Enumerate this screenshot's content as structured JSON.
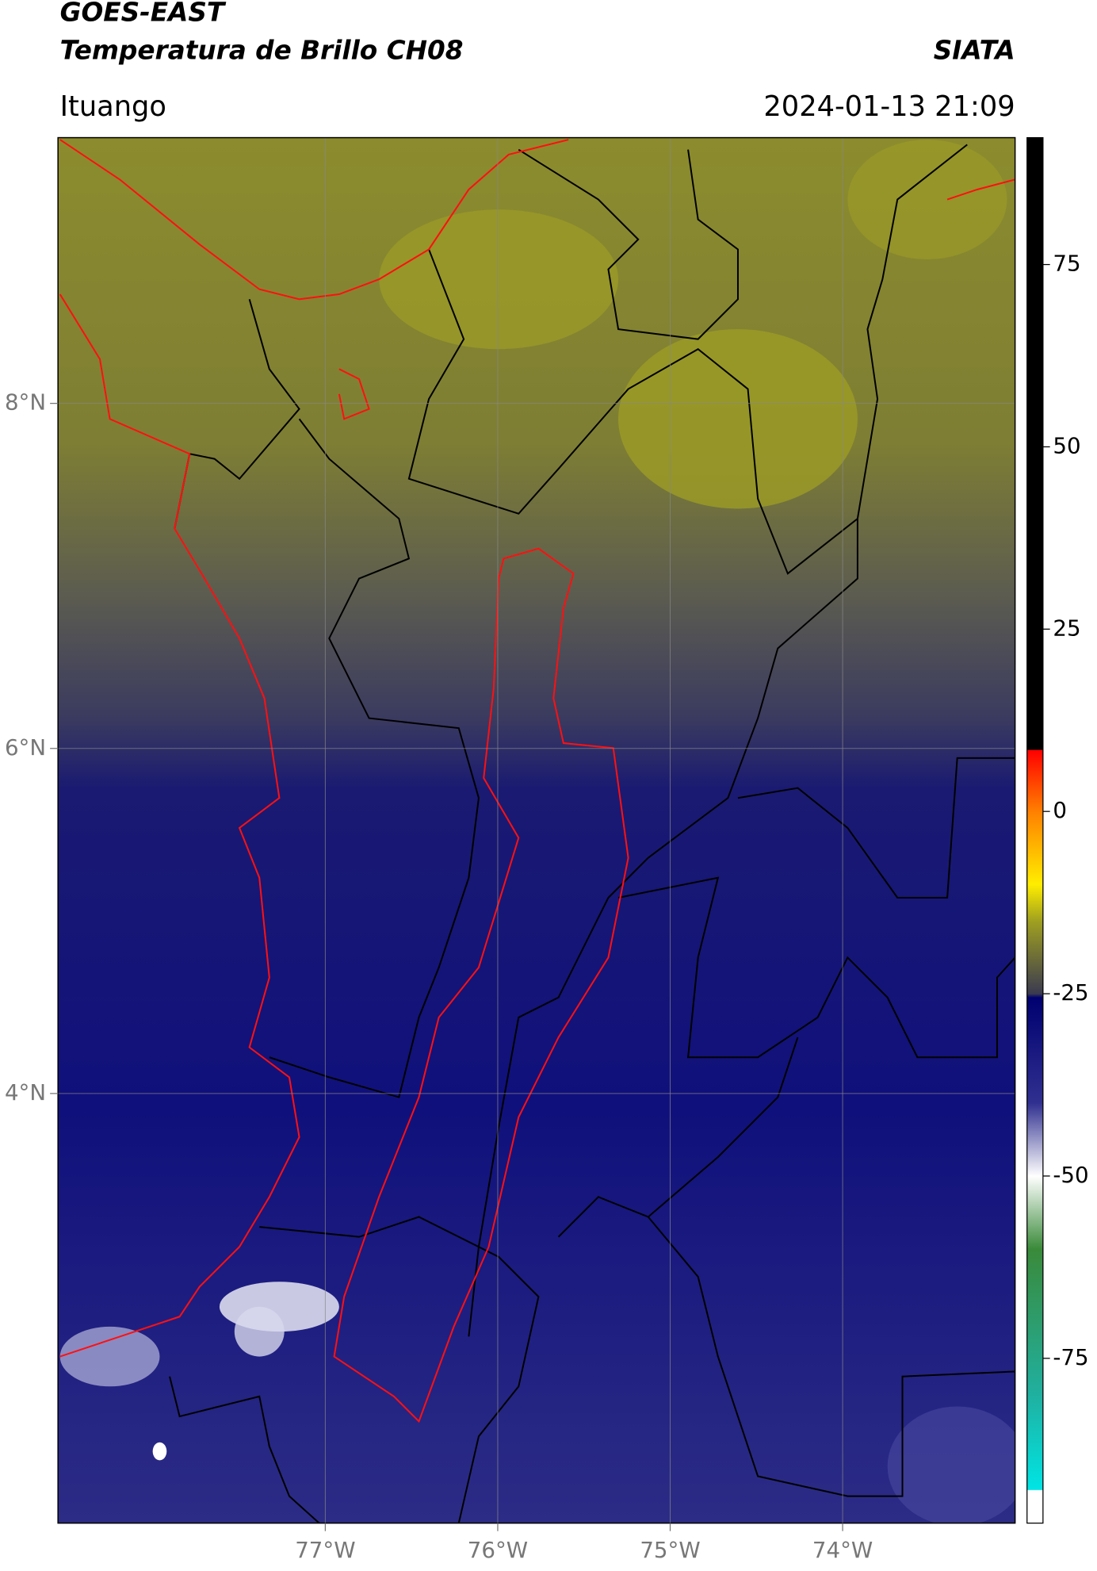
{
  "header": {
    "title": "GOES-EAST",
    "subtitle": "Temperatura de Brillo CH08",
    "brand": "SIATA",
    "location": "Ituango",
    "timestamp": "2024-01-13 21:09"
  },
  "map": {
    "lonlim": [
      -78.55,
      -73.0
    ],
    "latlim": [
      1.51,
      9.54
    ],
    "lon_ticks": [
      {
        "value": -77,
        "label": "77°W"
      },
      {
        "value": -76,
        "label": "76°W"
      },
      {
        "value": -75,
        "label": "75°W"
      },
      {
        "value": -74,
        "label": "74°W"
      }
    ],
    "lat_ticks": [
      {
        "value": 4,
        "label": "4°N"
      },
      {
        "value": 6,
        "label": "6°N"
      },
      {
        "value": 8,
        "label": "8°N"
      }
    ],
    "grid": true
  },
  "colorbar": {
    "lim": [
      -97.6,
      92.4
    ],
    "ticks": [
      -75,
      -50,
      -25,
      0,
      25,
      50,
      75
    ],
    "stops": [
      {
        "value": 92.4,
        "color": "#000000"
      },
      {
        "value": 8.5,
        "color": "#000000"
      },
      {
        "value": 8.4,
        "color": "#ff0000"
      },
      {
        "value": 0,
        "color": "#ff8000"
      },
      {
        "value": -10,
        "color": "#ffee00"
      },
      {
        "value": -15,
        "color": "#a0a020"
      },
      {
        "value": -25,
        "color": "#3a3a50"
      },
      {
        "value": -25.5,
        "color": "#000070"
      },
      {
        "value": -40,
        "color": "#303090"
      },
      {
        "value": -50,
        "color": "#ffffff"
      },
      {
        "value": -60,
        "color": "#3a8a3a"
      },
      {
        "value": -80,
        "color": "#20b0a0"
      },
      {
        "value": -93,
        "color": "#00e5e5"
      },
      {
        "value": -93.1,
        "color": "#ffffff"
      },
      {
        "value": -97.6,
        "color": "#ffffff"
      }
    ]
  }
}
